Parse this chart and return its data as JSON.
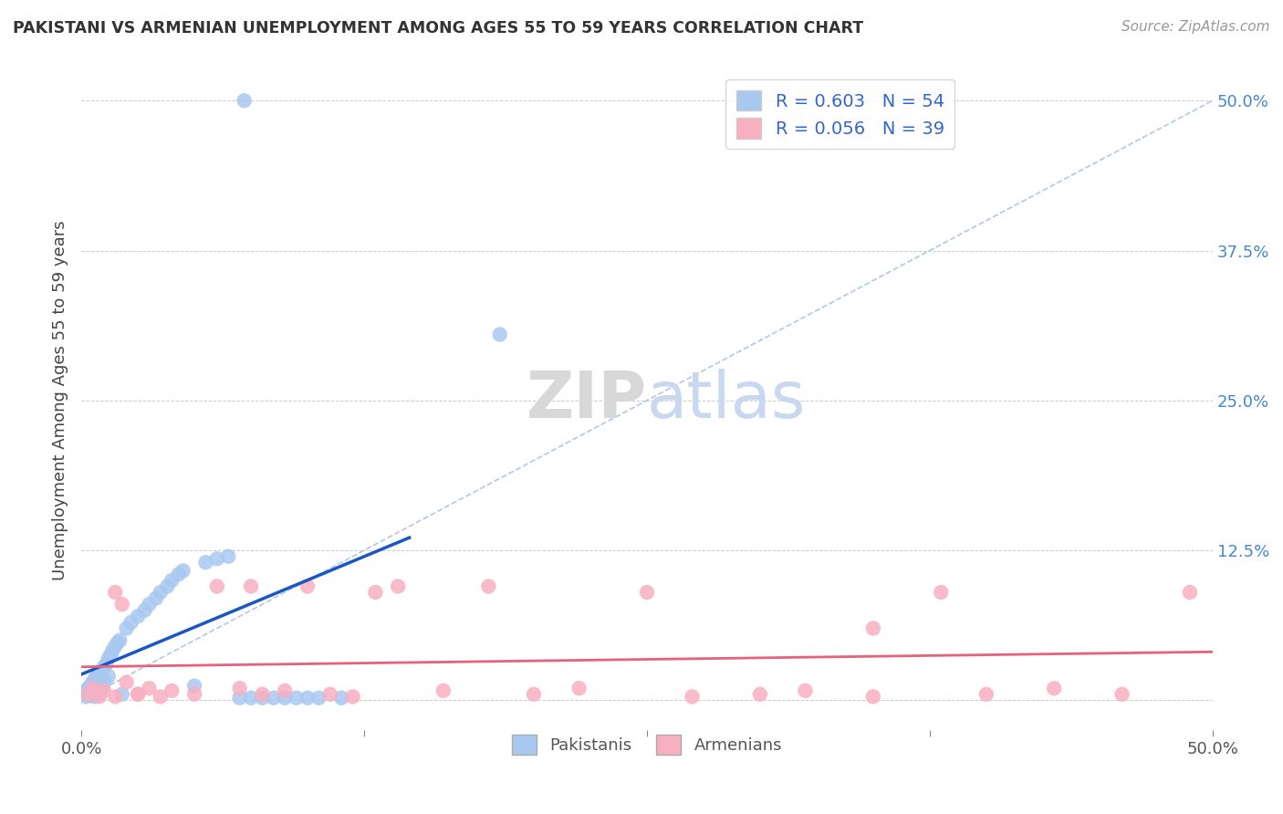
{
  "title": "PAKISTANI VS ARMENIAN UNEMPLOYMENT AMONG AGES 55 TO 59 YEARS CORRELATION CHART",
  "source": "Source: ZipAtlas.com",
  "ylabel": "Unemployment Among Ages 55 to 59 years",
  "xlim": [
    0.0,
    0.5
  ],
  "ylim": [
    -0.025,
    0.525
  ],
  "xticks": [
    0.0,
    0.125,
    0.25,
    0.375,
    0.5
  ],
  "yticks": [
    0.0,
    0.125,
    0.25,
    0.375,
    0.5
  ],
  "xticklabels": [
    "0.0%",
    "",
    "",
    "",
    "50.0%"
  ],
  "yticklabels": [
    "",
    "12.5%",
    "25.0%",
    "37.5%",
    "50.0%"
  ],
  "pakistani_color": "#a8c8f0",
  "armenian_color": "#f8b0c0",
  "pakistani_line_color": "#1a56c4",
  "armenian_line_color": "#e8607a",
  "R_pakistani": 0.603,
  "N_pakistani": 54,
  "R_armenian": 0.056,
  "N_armenian": 39,
  "legend_label_pakistani": "Pakistanis",
  "legend_label_armenian": "Armenians",
  "background_color": "#ffffff",
  "pak_x": [
    0.001,
    0.002,
    0.002,
    0.003,
    0.003,
    0.004,
    0.004,
    0.005,
    0.005,
    0.006,
    0.006,
    0.007,
    0.007,
    0.008,
    0.008,
    0.009,
    0.009,
    0.01,
    0.01,
    0.011,
    0.012,
    0.012,
    0.013,
    0.014,
    0.015,
    0.016,
    0.017,
    0.018,
    0.02,
    0.022,
    0.025,
    0.028,
    0.03,
    0.033,
    0.035,
    0.038,
    0.04,
    0.043,
    0.045,
    0.05,
    0.055,
    0.06,
    0.065,
    0.07,
    0.075,
    0.08,
    0.085,
    0.09,
    0.095,
    0.1,
    0.105,
    0.115,
    0.072,
    0.185
  ],
  "pak_y": [
    0.005,
    0.008,
    0.003,
    0.01,
    0.006,
    0.012,
    0.004,
    0.015,
    0.007,
    0.018,
    0.003,
    0.02,
    0.008,
    0.022,
    0.005,
    0.025,
    0.01,
    0.028,
    0.015,
    0.03,
    0.035,
    0.02,
    0.038,
    0.042,
    0.045,
    0.048,
    0.05,
    0.005,
    0.06,
    0.065,
    0.07,
    0.075,
    0.08,
    0.085,
    0.09,
    0.095,
    0.1,
    0.105,
    0.108,
    0.012,
    0.115,
    0.118,
    0.12,
    0.002,
    0.002,
    0.002,
    0.002,
    0.002,
    0.002,
    0.002,
    0.002,
    0.002,
    0.5,
    0.305
  ],
  "arm_x": [
    0.003,
    0.005,
    0.008,
    0.01,
    0.015,
    0.018,
    0.02,
    0.025,
    0.03,
    0.035,
    0.04,
    0.05,
    0.06,
    0.07,
    0.08,
    0.09,
    0.1,
    0.11,
    0.12,
    0.13,
    0.14,
    0.16,
    0.18,
    0.2,
    0.22,
    0.25,
    0.27,
    0.3,
    0.32,
    0.35,
    0.38,
    0.4,
    0.43,
    0.46,
    0.49,
    0.015,
    0.025,
    0.075,
    0.35
  ],
  "arm_y": [
    0.005,
    0.01,
    0.003,
    0.008,
    0.09,
    0.08,
    0.015,
    0.005,
    0.01,
    0.003,
    0.008,
    0.005,
    0.095,
    0.01,
    0.005,
    0.008,
    0.095,
    0.005,
    0.003,
    0.09,
    0.095,
    0.008,
    0.095,
    0.005,
    0.01,
    0.09,
    0.003,
    0.005,
    0.008,
    0.003,
    0.09,
    0.005,
    0.01,
    0.005,
    0.09,
    0.003,
    0.005,
    0.095,
    0.06
  ]
}
